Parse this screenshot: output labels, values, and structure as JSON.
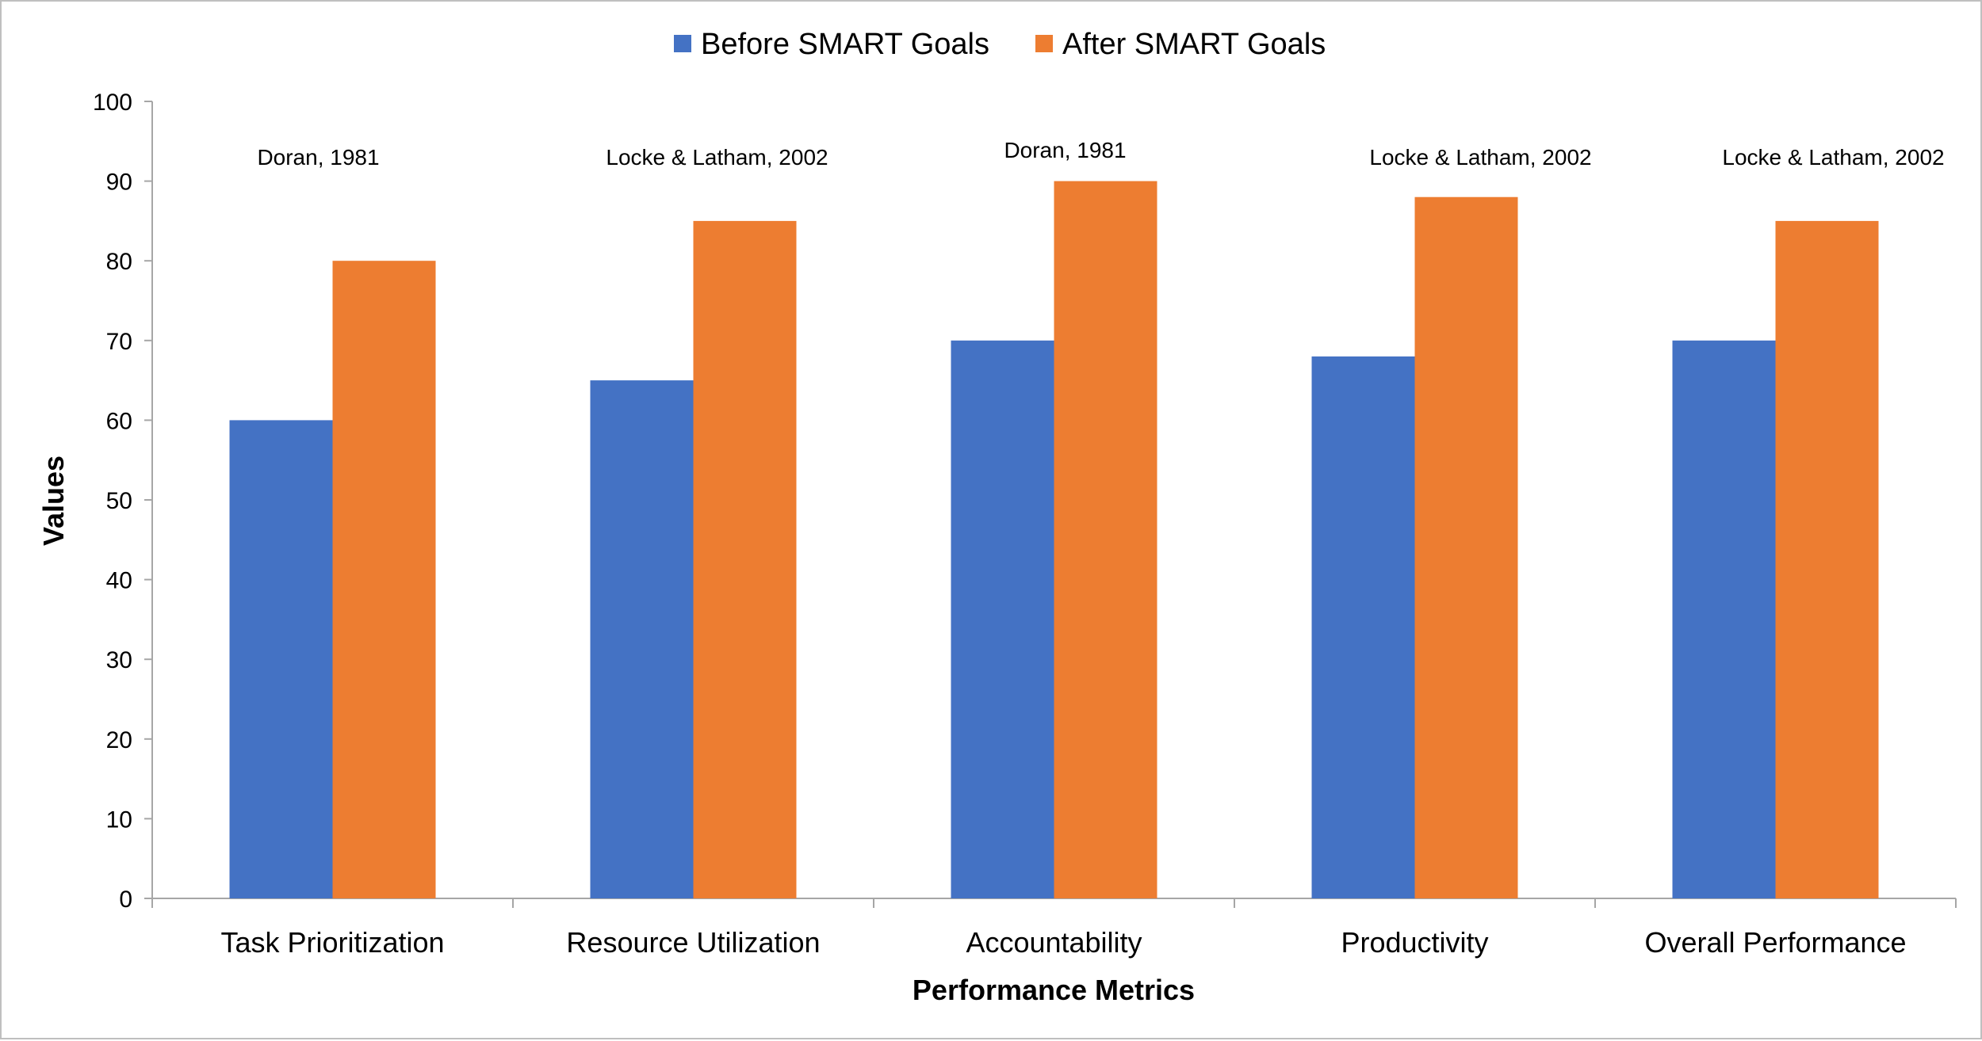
{
  "chart_data": {
    "type": "bar",
    "title": "",
    "xlabel": "Performance Metrics",
    "ylabel": "Values",
    "ylim": [
      0,
      100
    ],
    "yticks": [
      0,
      10,
      20,
      30,
      40,
      50,
      60,
      70,
      80,
      90,
      100
    ],
    "grid": false,
    "legend_position": "top-center",
    "categories": [
      "Task Prioritization",
      "Resource Utilization",
      "Accountability",
      "Productivity",
      "Overall Performance"
    ],
    "series": [
      {
        "name": "Before SMART Goals",
        "color": "#4472C4",
        "values": [
          60,
          65,
          70,
          68,
          70
        ]
      },
      {
        "name": "After SMART Goals",
        "color": "#ED7D31",
        "values": [
          80,
          85,
          90,
          88,
          85
        ]
      }
    ],
    "annotations": [
      "Doran, 1981",
      "Locke & Latham, 2002",
      "Doran, 1981",
      "Locke & Latham, 2002",
      "Locke & Latham, 2002"
    ]
  }
}
